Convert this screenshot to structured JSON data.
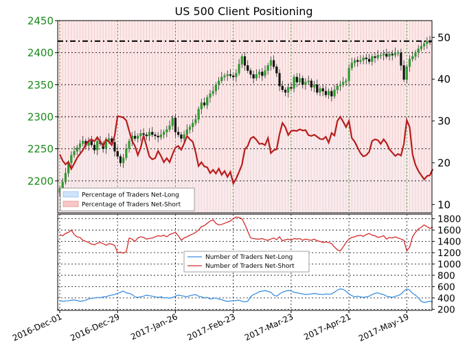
{
  "chart_data": [
    {
      "type": "candlestick",
      "title": "US 500 Client Positioning",
      "x_tick_labels": [
        "2016-Dec-01",
        "2016-Dec-29",
        "2017-Jan-26",
        "2017-Feb-23",
        "2017-Mar-23",
        "2017-Apr-21",
        "2017-May-19"
      ],
      "x_tick_index": [
        0,
        20,
        40,
        60,
        80,
        100,
        120
      ],
      "x_range_index": [
        0,
        128
      ],
      "y_left": {
        "ticks": [
          2200,
          2250,
          2300,
          2350,
          2400,
          2450
        ],
        "range": [
          2150,
          2450
        ],
        "tick_color": "#1a8a1a"
      },
      "y_right": {
        "ticks": [
          10,
          20,
          30,
          40,
          50
        ],
        "range": [
          8,
          54
        ]
      },
      "horizontal_reference_line": {
        "value": 2418
      },
      "series_price_closes": [
        2188,
        2198,
        2212,
        2228,
        2240,
        2246,
        2252,
        2258,
        2262,
        2255,
        2262,
        2256,
        2248,
        2262,
        2258,
        2250,
        2262,
        2266,
        2260,
        2246,
        2238,
        2228,
        2236,
        2250,
        2262,
        2270,
        2266,
        2270,
        2274,
        2272,
        2270,
        2276,
        2272,
        2270,
        2268,
        2272,
        2276,
        2280,
        2286,
        2298,
        2276,
        2272,
        2266,
        2272,
        2280,
        2284,
        2290,
        2296,
        2312,
        2322,
        2318,
        2330,
        2336,
        2340,
        2350,
        2356,
        2362,
        2364,
        2366,
        2364,
        2362,
        2368,
        2382,
        2394,
        2380,
        2372,
        2366,
        2360,
        2366,
        2370,
        2364,
        2372,
        2380,
        2388,
        2378,
        2368,
        2348,
        2342,
        2338,
        2346,
        2344,
        2362,
        2354,
        2360,
        2350,
        2354,
        2356,
        2346,
        2350,
        2338,
        2344,
        2340,
        2334,
        2340,
        2332,
        2342,
        2348,
        2350,
        2354,
        2356,
        2376,
        2384,
        2388,
        2386,
        2388,
        2392,
        2390,
        2386,
        2394,
        2392,
        2396,
        2396,
        2398,
        2394,
        2398,
        2396,
        2400,
        2400,
        2380,
        2358,
        2378,
        2390,
        2394,
        2400,
        2406,
        2410,
        2414,
        2418,
        2416
      ],
      "series_net_short_pct": [
        22.0,
        20.5,
        19.6,
        20.2,
        18.5,
        19.8,
        21.2,
        22.1,
        23.0,
        24.4,
        25.2,
        25.6,
        25.1,
        26.1,
        25.0,
        24.0,
        25.6,
        25.0,
        24.2,
        26.5,
        31.1,
        31.0,
        30.8,
        30.1,
        27.6,
        25.2,
        24.0,
        21.8,
        23.6,
        26.5,
        24.0,
        21.5,
        20.8,
        21.1,
        22.8,
        21.6,
        20.1,
        21.1,
        20.1,
        22.0,
        23.6,
        24.0,
        23.1,
        24.6,
        26.4,
        25.6,
        25.0,
        22.5,
        19.2,
        20.1,
        19.1,
        18.9,
        17.5,
        18.3,
        17.4,
        18.6,
        17.1,
        18.0,
        16.6,
        17.8,
        15.0,
        16.2,
        17.8,
        19.5,
        23.2,
        24.0,
        25.8,
        26.2,
        25.5,
        24.5,
        24.6,
        24.2,
        25.9,
        22.3,
        23.0,
        23.2,
        26.8,
        29.5,
        28.5,
        26.6,
        27.6,
        27.7,
        27.6,
        28.0,
        27.7,
        27.8,
        26.6,
        26.4,
        26.7,
        26.2,
        25.7,
        25.6,
        26.2,
        24.8,
        27.1,
        26.5,
        30.0,
        31.0,
        29.8,
        28.5,
        30.0,
        25.9,
        25.0,
        23.6,
        22.3,
        21.5,
        21.8,
        22.6,
        25.2,
        25.6,
        25.4,
        24.5,
        25.6,
        24.7,
        23.2,
        22.4,
        21.6,
        22.1,
        21.7,
        24.5,
        30.2,
        28.5,
        22.0,
        19.5,
        18.0,
        17.0,
        16.0,
        16.8,
        17.0,
        18.5
      ],
      "legend": [
        "Percentage of Traders Net-Long",
        "Percentage of Traders Net-Short"
      ],
      "legend_placement": "lower-left",
      "grid": true
    },
    {
      "type": "line",
      "y_ticks": [
        200,
        400,
        600,
        800,
        1000,
        1200,
        1400,
        1600,
        1800
      ],
      "y_range": [
        180,
        1880
      ],
      "series": [
        {
          "name": "Number of Traders Net-Long",
          "color": "#3a8fe0",
          "values": [
            355,
            340,
            345,
            350,
            360,
            365,
            355,
            340,
            348,
            360,
            385,
            392,
            398,
            410,
            405,
            418,
            420,
            440,
            450,
            460,
            480,
            500,
            520,
            490,
            480,
            460,
            420,
            410,
            420,
            430,
            450,
            440,
            430,
            420,
            410,
            420,
            400,
            405,
            395,
            410,
            430,
            450,
            440,
            430,
            420,
            440,
            450,
            460,
            430,
            420,
            400,
            410,
            380,
            390,
            400,
            380,
            370,
            350,
            340,
            345,
            350,
            355,
            360,
            340,
            330,
            340,
            420,
            460,
            480,
            510,
            520,
            530,
            515,
            500,
            450,
            430,
            470,
            500,
            520,
            530,
            525,
            500,
            490,
            480,
            470,
            460,
            465,
            470,
            480,
            470,
            465,
            460,
            470,
            465,
            470,
            500,
            540,
            560,
            550,
            520,
            470,
            440,
            420,
            430,
            420,
            410,
            420,
            430,
            460,
            480,
            490,
            470,
            460,
            430,
            420,
            410,
            430,
            440,
            470,
            520,
            560,
            540,
            480,
            450,
            400,
            340,
            320,
            330,
            340,
            330
          ]
        },
        {
          "name": "Number of Traders Net-Short",
          "color": "#d42a2a",
          "values": [
            1520,
            1500,
            1540,
            1560,
            1600,
            1520,
            1480,
            1470,
            1420,
            1400,
            1380,
            1350,
            1340,
            1370,
            1380,
            1360,
            1330,
            1360,
            1350,
            1330,
            1200,
            1210,
            1190,
            1220,
            1460,
            1440,
            1400,
            1460,
            1480,
            1470,
            1440,
            1450,
            1460,
            1480,
            1500,
            1490,
            1510,
            1480,
            1520,
            1540,
            1560,
            1500,
            1420,
            1460,
            1480,
            1510,
            1530,
            1560,
            1600,
            1660,
            1680,
            1720,
            1760,
            1780,
            1720,
            1690,
            1700,
            1720,
            1740,
            1760,
            1800,
            1830,
            1820,
            1800,
            1700,
            1580,
            1460,
            1450,
            1440,
            1440,
            1450,
            1430,
            1420,
            1440,
            1460,
            1430,
            1480,
            1410,
            1430,
            1440,
            1420,
            1450,
            1440,
            1450,
            1420,
            1440,
            1430,
            1420,
            1440,
            1410,
            1400,
            1380,
            1390,
            1380,
            1360,
            1300,
            1250,
            1230,
            1300,
            1380,
            1440,
            1470,
            1480,
            1500,
            1510,
            1490,
            1520,
            1540,
            1510,
            1500,
            1470,
            1480,
            1500,
            1440,
            1470,
            1460,
            1480,
            1460,
            1440,
            1420,
            1230,
            1300,
            1480,
            1560,
            1620,
            1650,
            1690,
            1660,
            1630,
            1650
          ]
        }
      ],
      "legend": [
        "Number of Traders Net-Long",
        "Number of Traders Net-Short"
      ],
      "legend_placement": "center",
      "grid": true
    }
  ]
}
